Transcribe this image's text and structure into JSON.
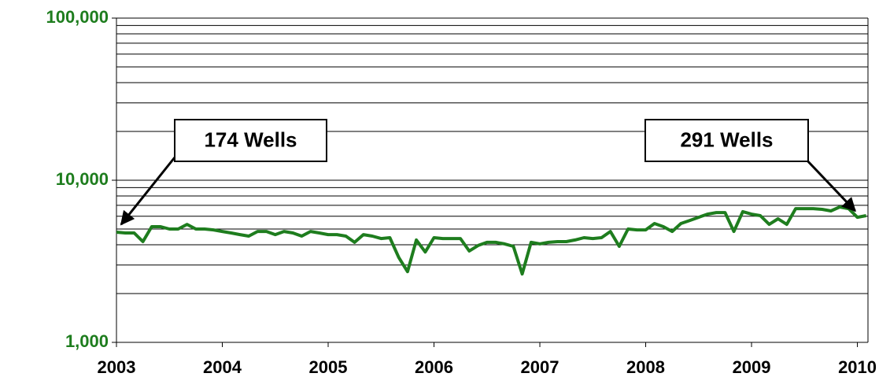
{
  "chart_data": {
    "type": "line",
    "yscale": "log",
    "grid": true,
    "xlim": [
      2003,
      2010.1
    ],
    "xticks": [
      2003,
      2004,
      2005,
      2006,
      2007,
      2008,
      2009,
      2010
    ],
    "ylim": [
      1000,
      100000
    ],
    "yticks": [
      {
        "value": 1000,
        "label": "1,000"
      },
      {
        "value": 10000,
        "label": "10,000"
      },
      {
        "value": 100000,
        "label": "100,000"
      }
    ],
    "yminorticks": [
      2000,
      3000,
      4000,
      5000,
      6000,
      7000,
      8000,
      9000,
      20000,
      30000,
      40000,
      50000,
      60000,
      70000,
      80000,
      90000
    ],
    "x": [
      2003,
      2003.083,
      2003.167,
      2003.25,
      2003.333,
      2003.417,
      2003.5,
      2003.583,
      2003.667,
      2003.75,
      2003.833,
      2003.917,
      2004,
      2004.083,
      2004.167,
      2004.25,
      2004.333,
      2004.417,
      2004.5,
      2004.583,
      2004.667,
      2004.75,
      2004.833,
      2004.917,
      2005,
      2005.083,
      2005.167,
      2005.25,
      2005.333,
      2005.417,
      2005.5,
      2005.583,
      2005.667,
      2005.75,
      2005.833,
      2005.917,
      2006,
      2006.083,
      2006.167,
      2006.25,
      2006.333,
      2006.417,
      2006.5,
      2006.583,
      2006.667,
      2006.75,
      2006.833,
      2006.917,
      2007,
      2007.083,
      2007.167,
      2007.25,
      2007.333,
      2007.417,
      2007.5,
      2007.583,
      2007.667,
      2007.75,
      2007.833,
      2007.917,
      2008,
      2008.083,
      2008.167,
      2008.25,
      2008.333,
      2008.417,
      2008.5,
      2008.583,
      2008.667,
      2008.75,
      2008.833,
      2008.917,
      2009,
      2009.083,
      2009.167,
      2009.25,
      2009.333,
      2009.417,
      2009.5,
      2009.583,
      2009.667,
      2009.75,
      2009.833,
      2009.917,
      2010,
      2010.083
    ],
    "series": [
      {
        "color": "#1e7d1e",
        "values": [
          4780,
          4730,
          4730,
          4180,
          5170,
          5170,
          5000,
          5000,
          5340,
          5000,
          5000,
          4940,
          4830,
          4730,
          4620,
          4520,
          4830,
          4830,
          4620,
          4830,
          4730,
          4520,
          4830,
          4730,
          4620,
          4620,
          4520,
          4140,
          4620,
          4520,
          4370,
          4420,
          3340,
          2730,
          4280,
          3610,
          4420,
          4370,
          4370,
          4370,
          3660,
          3960,
          4140,
          4140,
          4050,
          3910,
          2640,
          4140,
          4050,
          4140,
          4180,
          4180,
          4280,
          4420,
          4370,
          4420,
          4830,
          3910,
          5000,
          4940,
          4940,
          5410,
          5170,
          4830,
          5410,
          5650,
          5910,
          6180,
          6320,
          6320,
          4830,
          6400,
          6180,
          6050,
          5340,
          5780,
          5340,
          6680,
          6680,
          6680,
          6610,
          6470,
          6840,
          6680,
          5910,
          6050
        ]
      }
    ],
    "annotations": [
      {
        "text": "174 Wells"
      },
      {
        "text": "291 Wells"
      }
    ]
  }
}
